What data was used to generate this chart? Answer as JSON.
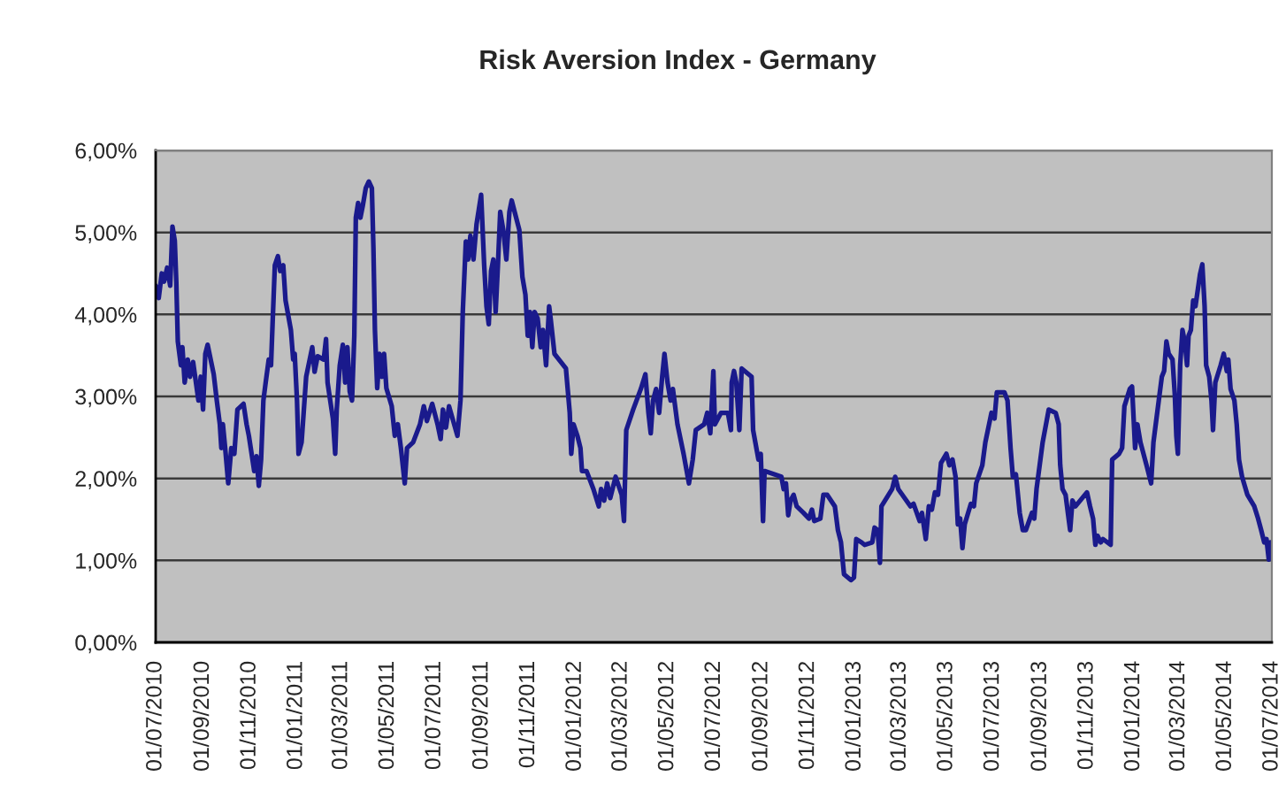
{
  "chart_data": {
    "type": "line",
    "title": "Risk Aversion Index - Germany",
    "x": [
      "2010-07-01",
      "2010-07-05",
      "2010-07-09",
      "2010-07-12",
      "2010-07-16",
      "2010-07-20",
      "2010-07-23",
      "2010-07-26",
      "2010-07-28",
      "2010-07-30",
      "2010-08-03",
      "2010-08-05",
      "2010-08-08",
      "2010-08-12",
      "2010-08-15",
      "2010-08-19",
      "2010-08-26",
      "2010-08-29",
      "2010-09-01",
      "2010-09-04",
      "2010-09-07",
      "2010-09-15",
      "2010-09-19",
      "2010-09-23",
      "2010-09-25",
      "2010-09-27",
      "2010-09-30",
      "2010-10-04",
      "2010-10-08",
      "2010-10-12",
      "2010-10-16",
      "2010-10-24",
      "2010-10-28",
      "2010-10-31",
      "2010-11-07",
      "2010-11-10",
      "2010-11-13",
      "2010-11-16",
      "2010-11-19",
      "2010-11-22",
      "2010-11-26",
      "2010-11-29",
      "2010-12-01",
      "2010-12-04",
      "2010-12-08",
      "2010-12-11",
      "2010-12-15",
      "2010-12-18",
      "2010-12-25",
      "2010-12-28",
      "2010-12-30",
      "2011-01-02",
      "2011-01-04",
      "2011-01-08",
      "2011-01-14",
      "2011-01-22",
      "2011-01-25",
      "2011-01-29",
      "2011-02-06",
      "2011-02-09",
      "2011-02-11",
      "2011-02-18",
      "2011-02-21",
      "2011-02-23",
      "2011-02-27",
      "2011-03-03",
      "2011-03-06",
      "2011-03-09",
      "2011-03-12",
      "2011-03-15",
      "2011-03-18",
      "2011-03-20",
      "2011-03-23",
      "2011-03-26",
      "2011-03-29",
      "2011-04-02",
      "2011-04-06",
      "2011-04-10",
      "2011-04-12",
      "2011-04-14",
      "2011-04-17",
      "2011-04-20",
      "2011-04-23",
      "2011-04-26",
      "2011-04-29",
      "2011-05-06",
      "2011-05-10",
      "2011-05-14",
      "2011-05-18",
      "2011-05-23",
      "2011-05-26",
      "2011-06-03",
      "2011-06-12",
      "2011-06-17",
      "2011-06-21",
      "2011-06-28",
      "2011-07-05",
      "2011-07-09",
      "2011-07-12",
      "2011-07-16",
      "2011-07-20",
      "2011-07-31",
      "2011-08-04",
      "2011-08-07",
      "2011-08-11",
      "2011-08-14",
      "2011-08-17",
      "2011-08-21",
      "2011-08-25",
      "2011-08-31",
      "2011-09-04",
      "2011-09-07",
      "2011-09-10",
      "2011-09-13",
      "2011-09-16",
      "2011-09-19",
      "2011-09-22",
      "2011-09-25",
      "2011-09-29",
      "2011-10-03",
      "2011-10-07",
      "2011-10-10",
      "2011-10-20",
      "2011-10-24",
      "2011-10-28",
      "2011-10-31",
      "2011-11-03",
      "2011-11-06",
      "2011-11-09",
      "2011-11-13",
      "2011-11-17",
      "2011-11-20",
      "2011-11-24",
      "2011-11-28",
      "2011-11-30",
      "2011-12-05",
      "2011-12-20",
      "2011-12-25",
      "2011-12-27",
      "2011-12-30",
      "2012-01-04",
      "2012-01-08",
      "2012-01-10",
      "2012-01-16",
      "2012-01-25",
      "2012-02-01",
      "2012-02-04",
      "2012-02-08",
      "2012-02-12",
      "2012-02-16",
      "2012-02-23",
      "2012-03-02",
      "2012-03-05",
      "2012-03-08",
      "2012-03-17",
      "2012-03-27",
      "2012-04-02",
      "2012-04-06",
      "2012-04-09",
      "2012-04-12",
      "2012-04-16",
      "2012-04-20",
      "2012-04-24",
      "2012-04-27",
      "2012-05-01",
      "2012-05-05",
      "2012-05-08",
      "2012-05-14",
      "2012-05-22",
      "2012-05-29",
      "2012-06-03",
      "2012-06-07",
      "2012-06-18",
      "2012-06-22",
      "2012-06-26",
      "2012-06-30",
      "2012-07-02",
      "2012-07-10",
      "2012-07-19",
      "2012-07-23",
      "2012-07-24",
      "2012-07-27",
      "2012-07-30",
      "2012-08-03",
      "2012-08-06",
      "2012-08-19",
      "2012-08-21",
      "2012-08-28",
      "2012-08-31",
      "2012-09-03",
      "2012-09-05",
      "2012-09-27",
      "2012-09-30",
      "2012-10-03",
      "2012-10-06",
      "2012-10-09",
      "2012-10-13",
      "2012-10-17",
      "2012-10-26",
      "2012-11-02",
      "2012-11-06",
      "2012-11-09",
      "2012-11-17",
      "2012-11-21",
      "2012-11-26",
      "2012-12-06",
      "2012-12-10",
      "2012-12-14",
      "2012-12-18",
      "2012-12-27",
      "2012-12-31",
      "2013-01-03",
      "2013-01-10",
      "2013-01-14",
      "2013-01-24",
      "2013-01-27",
      "2013-01-31",
      "2013-02-03",
      "2013-02-05",
      "2013-02-19",
      "2013-02-23",
      "2013-02-27",
      "2013-03-15",
      "2013-03-19",
      "2013-03-27",
      "2013-03-30",
      "2013-04-04",
      "2013-04-08",
      "2013-04-12",
      "2013-04-16",
      "2013-04-20",
      "2013-04-24",
      "2013-05-01",
      "2013-05-05",
      "2013-05-09",
      "2013-05-13",
      "2013-05-16",
      "2013-05-19",
      "2013-05-22",
      "2013-05-25",
      "2013-06-02",
      "2013-06-06",
      "2013-06-09",
      "2013-06-17",
      "2013-06-21",
      "2013-06-29",
      "2013-07-03",
      "2013-07-06",
      "2013-07-16",
      "2013-07-20",
      "2013-07-24",
      "2013-07-27",
      "2013-07-31",
      "2013-08-05",
      "2013-08-09",
      "2013-08-13",
      "2013-08-21",
      "2013-08-24",
      "2013-08-27",
      "2013-09-04",
      "2013-09-12",
      "2013-09-21",
      "2013-09-25",
      "2013-09-27",
      "2013-09-30",
      "2013-10-04",
      "2013-10-08",
      "2013-10-10",
      "2013-10-13",
      "2013-10-17",
      "2013-11-01",
      "2013-11-05",
      "2013-11-09",
      "2013-11-12",
      "2013-11-15",
      "2013-11-19",
      "2013-11-22",
      "2013-12-02",
      "2013-12-04",
      "2013-12-13",
      "2013-12-17",
      "2013-12-20",
      "2013-12-27",
      "2013-12-30",
      "2014-01-03",
      "2014-01-06",
      "2014-01-10",
      "2014-01-18",
      "2014-01-24",
      "2014-01-27",
      "2014-02-03",
      "2014-02-07",
      "2014-02-10",
      "2014-02-13",
      "2014-02-16",
      "2014-02-21",
      "2014-02-24",
      "2014-02-26",
      "2014-02-28",
      "2014-03-03",
      "2014-03-06",
      "2014-03-09",
      "2014-03-12",
      "2014-03-14",
      "2014-03-17",
      "2014-03-20",
      "2014-03-23",
      "2014-03-29",
      "2014-04-01",
      "2014-04-04",
      "2014-04-06",
      "2014-04-10",
      "2014-04-13",
      "2014-04-15",
      "2014-04-18",
      "2014-04-25",
      "2014-04-29",
      "2014-05-03",
      "2014-05-05",
      "2014-05-08",
      "2014-05-13",
      "2014-05-16",
      "2014-05-19",
      "2014-05-23",
      "2014-05-30",
      "2014-06-08",
      "2014-06-13",
      "2014-06-17",
      "2014-06-21",
      "2014-06-24",
      "2014-06-27",
      "2014-06-29",
      "2014-07-01"
    ],
    "series": [
      {
        "color": "#1a1a8c",
        "values": [
          4.35,
          4.2,
          4.5,
          4.4,
          4.57,
          4.35,
          5.07,
          4.9,
          4.4,
          3.67,
          3.38,
          3.6,
          3.17,
          3.45,
          3.24,
          3.42,
          2.95,
          3.24,
          2.84,
          3.52,
          3.63,
          3.27,
          2.95,
          2.66,
          2.37,
          2.66,
          2.37,
          1.94,
          2.37,
          2.3,
          2.84,
          2.91,
          2.66,
          2.52,
          2.09,
          2.27,
          1.91,
          2.23,
          2.95,
          3.17,
          3.45,
          3.38,
          3.88,
          4.6,
          4.71,
          4.53,
          4.6,
          4.17,
          3.81,
          3.45,
          3.52,
          2.95,
          2.3,
          2.44,
          3.24,
          3.6,
          3.3,
          3.49,
          3.45,
          3.7,
          3.17,
          2.73,
          2.3,
          2.84,
          3.38,
          3.63,
          3.17,
          3.6,
          3.06,
          2.95,
          3.74,
          5.18,
          5.36,
          5.18,
          5.32,
          5.54,
          5.62,
          5.54,
          4.82,
          3.81,
          3.1,
          3.52,
          3.24,
          3.52,
          3.1,
          2.88,
          2.52,
          2.66,
          2.37,
          1.94,
          2.37,
          2.44,
          2.66,
          2.88,
          2.7,
          2.91,
          2.66,
          2.48,
          2.84,
          2.62,
          2.88,
          2.52,
          2.95,
          4.03,
          4.89,
          4.67,
          4.96,
          4.67,
          5.1,
          5.46,
          4.6,
          4.1,
          3.88,
          4.53,
          4.67,
          4.03,
          4.6,
          5.25,
          5.03,
          4.67,
          5.25,
          5.39,
          5.03,
          4.46,
          4.24,
          3.74,
          4.03,
          3.6,
          4.03,
          3.95,
          3.6,
          3.81,
          3.38,
          4.1,
          3.95,
          3.52,
          3.34,
          2.8,
          2.3,
          2.66,
          2.52,
          2.37,
          2.09,
          2.09,
          1.87,
          1.66,
          1.87,
          1.73,
          1.94,
          1.76,
          2.02,
          1.8,
          1.48,
          2.59,
          2.84,
          3.09,
          3.27,
          2.8,
          2.55,
          2.95,
          3.09,
          2.8,
          3.24,
          3.52,
          3.17,
          2.95,
          3.09,
          2.66,
          2.3,
          1.94,
          2.23,
          2.59,
          2.66,
          2.8,
          2.55,
          3.31,
          2.66,
          2.8,
          2.8,
          2.59,
          3.17,
          3.31,
          3.17,
          2.59,
          3.34,
          3.24,
          2.59,
          2.23,
          2.3,
          1.48,
          2.09,
          2.02,
          1.87,
          1.94,
          1.55,
          1.73,
          1.8,
          1.66,
          1.58,
          1.51,
          1.62,
          1.48,
          1.51,
          1.8,
          1.8,
          1.66,
          1.37,
          1.22,
          0.83,
          0.76,
          0.79,
          1.26,
          1.22,
          1.19,
          1.22,
          1.4,
          1.37,
          0.97,
          1.66,
          1.87,
          2.02,
          1.87,
          1.66,
          1.69,
          1.48,
          1.58,
          1.26,
          1.66,
          1.62,
          1.83,
          1.8,
          2.19,
          2.3,
          2.16,
          2.23,
          2.02,
          1.44,
          1.51,
          1.15,
          1.44,
          1.69,
          1.66,
          1.94,
          2.16,
          2.44,
          2.8,
          2.73,
          3.05,
          3.05,
          2.95,
          2.37,
          2.02,
          2.05,
          1.58,
          1.37,
          1.37,
          1.58,
          1.51,
          1.87,
          2.44,
          2.84,
          2.8,
          2.66,
          2.16,
          1.87,
          1.8,
          1.51,
          1.37,
          1.73,
          1.66,
          1.83,
          1.66,
          1.51,
          1.19,
          1.3,
          1.22,
          1.26,
          1.19,
          2.23,
          2.3,
          2.37,
          2.88,
          3.09,
          3.12,
          2.37,
          2.66,
          2.44,
          2.16,
          1.94,
          2.44,
          2.95,
          3.24,
          3.31,
          3.67,
          3.52,
          3.45,
          3.02,
          2.52,
          2.3,
          3.38,
          3.81,
          3.67,
          3.38,
          3.74,
          3.81,
          4.17,
          4.1,
          4.49,
          4.61,
          4.1,
          3.38,
          3.24,
          2.95,
          2.59,
          3.17,
          3.38,
          3.52,
          3.31,
          3.45,
          3.09,
          2.95,
          2.66,
          2.23,
          2.02,
          1.8,
          1.66,
          1.51,
          1.37,
          1.22,
          1.26,
          1.01,
          1.22,
          1.2
        ]
      }
    ],
    "xlim": [
      "2010-07-01",
      "2014-07-01"
    ],
    "xticks": [
      {
        "value": "2010-07-01",
        "label": "01/07/2010"
      },
      {
        "value": "2010-09-01",
        "label": "01/09/2010"
      },
      {
        "value": "2010-11-01",
        "label": "01/11/2010"
      },
      {
        "value": "2011-01-01",
        "label": "01/01/2011"
      },
      {
        "value": "2011-03-01",
        "label": "01/03/2011"
      },
      {
        "value": "2011-05-01",
        "label": "01/05/2011"
      },
      {
        "value": "2011-07-01",
        "label": "01/07/2011"
      },
      {
        "value": "2011-09-01",
        "label": "01/09/2011"
      },
      {
        "value": "2011-11-01",
        "label": "01/11/2011"
      },
      {
        "value": "2012-01-01",
        "label": "01/01/2012"
      },
      {
        "value": "2012-03-01",
        "label": "01/03/2012"
      },
      {
        "value": "2012-05-01",
        "label": "01/05/2012"
      },
      {
        "value": "2012-07-01",
        "label": "01/07/2012"
      },
      {
        "value": "2012-09-01",
        "label": "01/09/2012"
      },
      {
        "value": "2012-11-01",
        "label": "01/11/2012"
      },
      {
        "value": "2013-01-01",
        "label": "01/01/2013"
      },
      {
        "value": "2013-03-01",
        "label": "01/03/2013"
      },
      {
        "value": "2013-05-01",
        "label": "01/05/2013"
      },
      {
        "value": "2013-07-01",
        "label": "01/07/2013"
      },
      {
        "value": "2013-09-01",
        "label": "01/09/2013"
      },
      {
        "value": "2013-11-01",
        "label": "01/11/2013"
      },
      {
        "value": "2014-01-01",
        "label": "01/01/2014"
      },
      {
        "value": "2014-03-01",
        "label": "01/03/2014"
      },
      {
        "value": "2014-05-01",
        "label": "01/05/2014"
      },
      {
        "value": "2014-07-01",
        "label": "01/07/2014"
      }
    ],
    "ylim": [
      0,
      6
    ],
    "yticks": [
      {
        "value": 0,
        "label": "0,00%"
      },
      {
        "value": 1,
        "label": "1,00%"
      },
      {
        "value": 2,
        "label": "2,00%"
      },
      {
        "value": 3,
        "label": "3,00%"
      },
      {
        "value": 4,
        "label": "4,00%"
      },
      {
        "value": 5,
        "label": "5,00%"
      },
      {
        "value": 6,
        "label": "6,00%"
      }
    ],
    "grid": "y",
    "line_style": "solid"
  }
}
